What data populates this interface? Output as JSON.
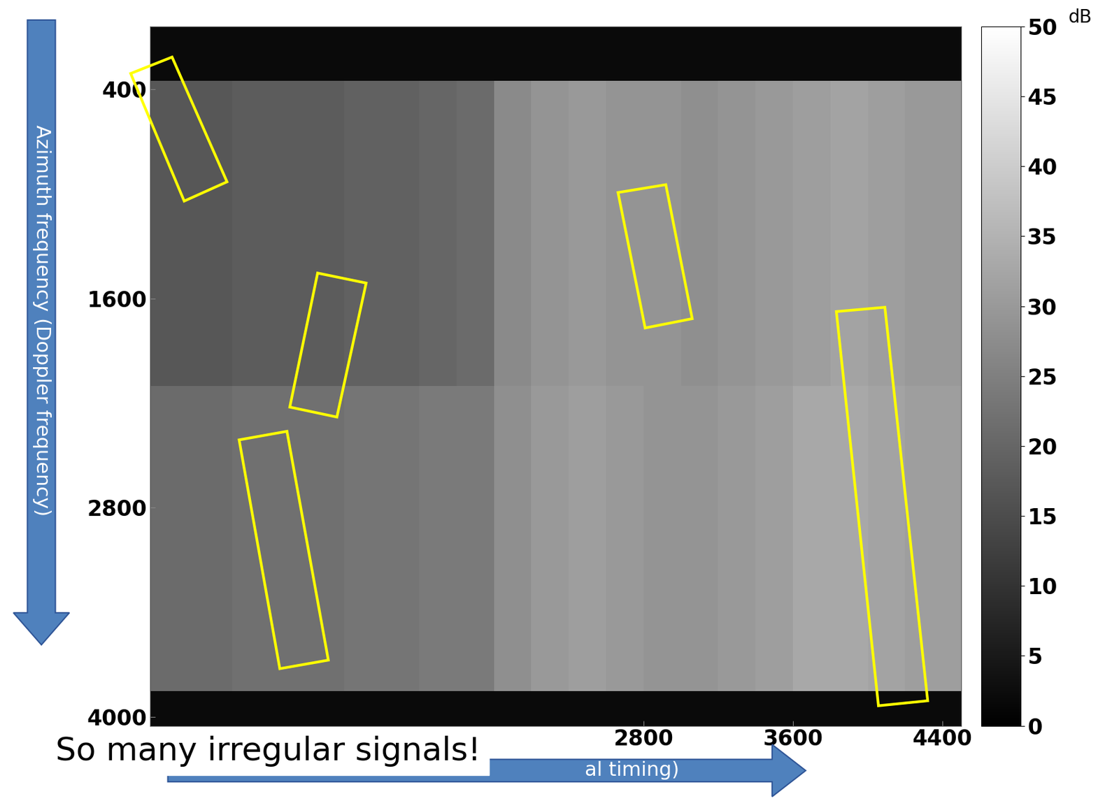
{
  "chart_data": {
    "type": "heatmap",
    "ylabel": "Azimuth frequency (Doppler frequency)",
    "xlabel": "al timing)",
    "annotation": "So many irregular signals!",
    "xlim": [
      160,
      4500
    ],
    "ylim": [
      4050,
      40
    ],
    "xticks": [
      2800,
      3600,
      4400
    ],
    "yticks": [
      400,
      1600,
      2800,
      4000
    ],
    "x_edges": [
      160,
      400,
      600,
      800,
      1000,
      1200,
      1400,
      1600,
      1800,
      2000,
      2200,
      2400,
      2600,
      2800,
      3000,
      3200,
      3400,
      3600,
      3800,
      4000,
      4200,
      4500
    ],
    "y_edges": [
      40,
      350,
      2100,
      3850,
      4050
    ],
    "cells": [
      [
        2,
        2,
        2,
        2,
        2,
        2,
        2,
        2,
        2,
        2,
        2,
        2,
        2,
        2,
        2,
        2,
        2,
        2,
        2,
        2,
        2
      ],
      [
        17,
        17,
        18,
        18,
        18,
        19,
        19,
        20,
        21,
        27,
        29,
        30,
        29,
        29,
        28,
        29,
        30,
        31,
        32,
        31,
        30
      ],
      [
        21,
        21,
        22,
        22,
        22,
        23,
        23,
        24,
        24,
        28,
        30,
        31,
        30,
        29,
        29,
        30,
        31,
        33,
        33,
        32,
        31
      ],
      [
        2,
        2,
        2,
        2,
        2,
        2,
        2,
        2,
        2,
        2,
        2,
        2,
        2,
        2,
        2,
        2,
        2,
        2,
        2,
        2,
        2
      ]
    ],
    "colorbar": {
      "range": [
        0,
        50
      ],
      "ticks": [
        0,
        5,
        10,
        15,
        20,
        25,
        30,
        35,
        40,
        45,
        50
      ],
      "label": "dB"
    }
  }
}
